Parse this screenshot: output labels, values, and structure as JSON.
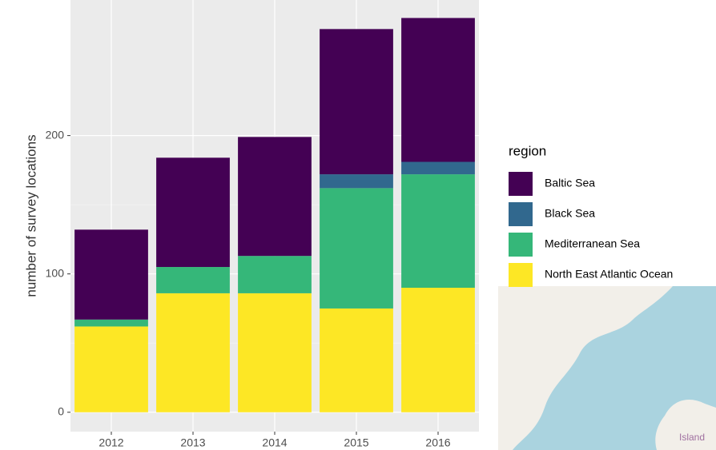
{
  "chart_data": {
    "type": "stacked_bar",
    "y_label": "number of survey locations",
    "legend_title": "region",
    "categories": [
      "2012",
      "2013",
      "2014",
      "2015",
      "2016"
    ],
    "series": [
      {
        "name": "Baltic Sea",
        "color": "#440154",
        "values": [
          65,
          79,
          86,
          105,
          104
        ]
      },
      {
        "name": "Black Sea",
        "color": "#31688e",
        "values": [
          0,
          0,
          0,
          10,
          9
        ]
      },
      {
        "name": "Mediterranean Sea",
        "color": "#35b779",
        "values": [
          5,
          19,
          27,
          87,
          82
        ]
      },
      {
        "name": "North East Atlantic Ocean",
        "color": "#fde725",
        "values": [
          62,
          86,
          86,
          75,
          90
        ]
      }
    ],
    "ylim": [
      -14,
      298
    ],
    "yticks": [
      0,
      100,
      200
    ],
    "grid": true,
    "legend": "right"
  },
  "map": {
    "label": "Island"
  }
}
